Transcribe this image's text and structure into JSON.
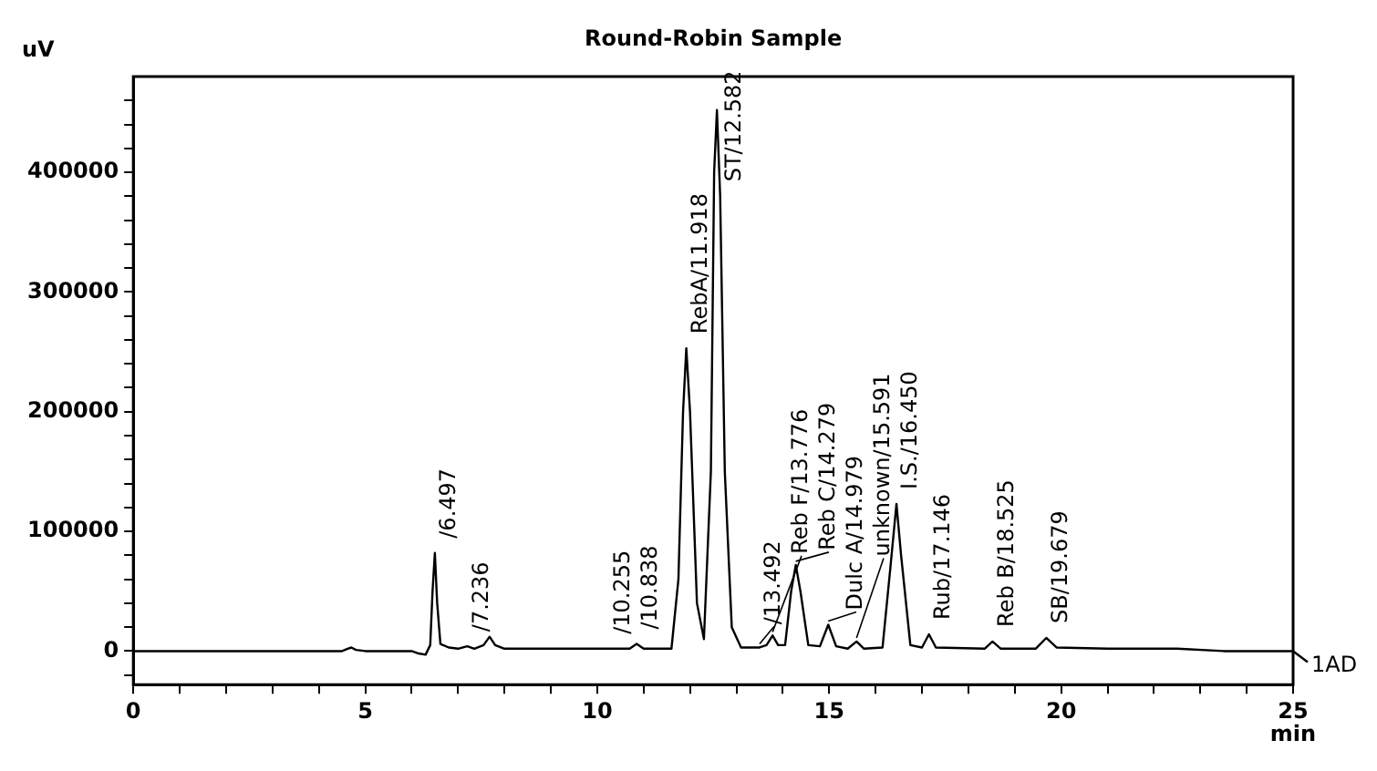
{
  "chart_data": {
    "type": "line",
    "title": "Round-Robin Sample",
    "xlabel": "min",
    "ylabel": "uV",
    "xlim": [
      0,
      25
    ],
    "ylim": [
      -28000,
      480000
    ],
    "xticks": [
      0,
      {
        "value": 1,
        "label": null
      },
      {
        "value": 2,
        "label": null
      },
      {
        "value": 3,
        "label": null
      },
      {
        "value": 4,
        "label": null
      },
      5,
      {
        "value": 6,
        "label": null
      },
      {
        "value": 7,
        "label": null
      },
      {
        "value": 8,
        "label": null
      },
      {
        "value": 9,
        "label": null
      },
      10,
      {
        "value": 11,
        "label": null
      },
      {
        "value": 12,
        "label": null
      },
      {
        "value": 13,
        "label": null
      },
      {
        "value": 14,
        "label": null
      },
      15,
      {
        "value": 16,
        "label": null
      },
      {
        "value": 17,
        "label": null
      },
      {
        "value": 18,
        "label": null
      },
      {
        "value": 19,
        "label": null
      },
      20,
      {
        "value": 21,
        "label": null
      },
      {
        "value": 22,
        "label": null
      },
      {
        "value": 23,
        "label": null
      },
      {
        "value": 24,
        "label": null
      },
      25
    ],
    "yticks": [
      {
        "value": -20000,
        "label": null
      },
      0,
      {
        "value": 20000,
        "label": null
      },
      {
        "value": 40000,
        "label": null
      },
      {
        "value": 60000,
        "label": null
      },
      {
        "value": 80000,
        "label": null
      },
      100000,
      {
        "value": 120000,
        "label": null
      },
      {
        "value": 140000,
        "label": null
      },
      {
        "value": 160000,
        "label": null
      },
      {
        "value": 180000,
        "label": null
      },
      200000,
      {
        "value": 220000,
        "label": null
      },
      {
        "value": 240000,
        "label": null
      },
      {
        "value": 260000,
        "label": null
      },
      {
        "value": 280000,
        "label": null
      },
      300000,
      {
        "value": 320000,
        "label": null
      },
      {
        "value": 340000,
        "label": null
      },
      {
        "value": 360000,
        "label": null
      },
      {
        "value": 380000,
        "label": null
      },
      400000,
      {
        "value": 420000,
        "label": null
      },
      {
        "value": 440000,
        "label": null
      },
      {
        "value": 460000,
        "label": null
      }
    ],
    "grid": false,
    "legend": "right",
    "marker": "none",
    "line_style": "solid",
    "series": [
      {
        "name": "1AD",
        "color": "#000000",
        "x": [
          0,
          4.5,
          4.62,
          4.7,
          4.8,
          5.0,
          6.0,
          6.15,
          6.3,
          6.4,
          6.45,
          6.5,
          6.55,
          6.62,
          6.8,
          7.0,
          7.2,
          7.35,
          7.55,
          7.68,
          7.8,
          8.0,
          9.0,
          10.0,
          10.25,
          10.7,
          10.85,
          11.0,
          11.6,
          11.75,
          11.85,
          11.92,
          12.0,
          12.15,
          12.3,
          12.45,
          12.52,
          12.58,
          12.65,
          12.75,
          12.9,
          13.1,
          13.5,
          13.65,
          13.78,
          13.9,
          14.05,
          14.18,
          14.28,
          14.38,
          14.55,
          14.8,
          14.98,
          15.15,
          15.4,
          15.59,
          15.75,
          16.15,
          16.32,
          16.45,
          16.55,
          16.75,
          17.0,
          17.15,
          17.3,
          18.35,
          18.52,
          18.7,
          19.45,
          19.68,
          19.9,
          21.0,
          22.5,
          23.5,
          25
        ],
        "values": [
          0,
          0,
          2000,
          3000,
          1000,
          0,
          0,
          -2000,
          -3000,
          5000,
          50000,
          82000,
          40000,
          6000,
          3000,
          2000,
          4000,
          2000,
          5000,
          12000,
          5000,
          2000,
          2000,
          2000,
          2000,
          2000,
          6000,
          2000,
          2000,
          60000,
          200000,
          253000,
          200000,
          40000,
          10000,
          150000,
          400000,
          452000,
          380000,
          150000,
          20000,
          3000,
          3000,
          5000,
          13000,
          5000,
          5000,
          50000,
          72000,
          50000,
          5000,
          4000,
          22000,
          4000,
          2000,
          8000,
          2000,
          3000,
          70000,
          123000,
          80000,
          5000,
          3000,
          14000,
          3000,
          2000,
          8000,
          2000,
          2000,
          11000,
          3000,
          2000,
          2000,
          0,
          0
        ]
      }
    ],
    "annotations": [
      {
        "text": "/6.497",
        "x": 6.5,
        "y": 82000
      },
      {
        "text": "/7.236",
        "x": 7.2,
        "y": 4000
      },
      {
        "text": "/10.255",
        "x": 10.25,
        "y": 2000
      },
      {
        "text": "/10.838",
        "x": 10.85,
        "y": 6000
      },
      {
        "text": "RebA/11.918",
        "x": 11.92,
        "y": 253000
      },
      {
        "text": "ST/12.582",
        "x": 12.65,
        "y": 380000
      },
      {
        "text": "/13.492",
        "x": 13.5,
        "y": 3000
      },
      {
        "text": "Reb F/13.776",
        "x": 13.78,
        "y": 13000
      },
      {
        "text": "Reb C/14.279",
        "x": 14.28,
        "y": 72000
      },
      {
        "text": "Dulc A/14.979",
        "x": 14.98,
        "y": 22000
      },
      {
        "text": "unknown/15.591",
        "x": 15.59,
        "y": 8000
      },
      {
        "text": "I.S./16.450",
        "x": 16.45,
        "y": 123000
      },
      {
        "text": "Rub/17.146",
        "x": 17.15,
        "y": 14000
      },
      {
        "text": "Reb B/18.525",
        "x": 18.52,
        "y": 8000
      },
      {
        "text": "SB/19.679",
        "x": 19.68,
        "y": 11000
      }
    ]
  }
}
